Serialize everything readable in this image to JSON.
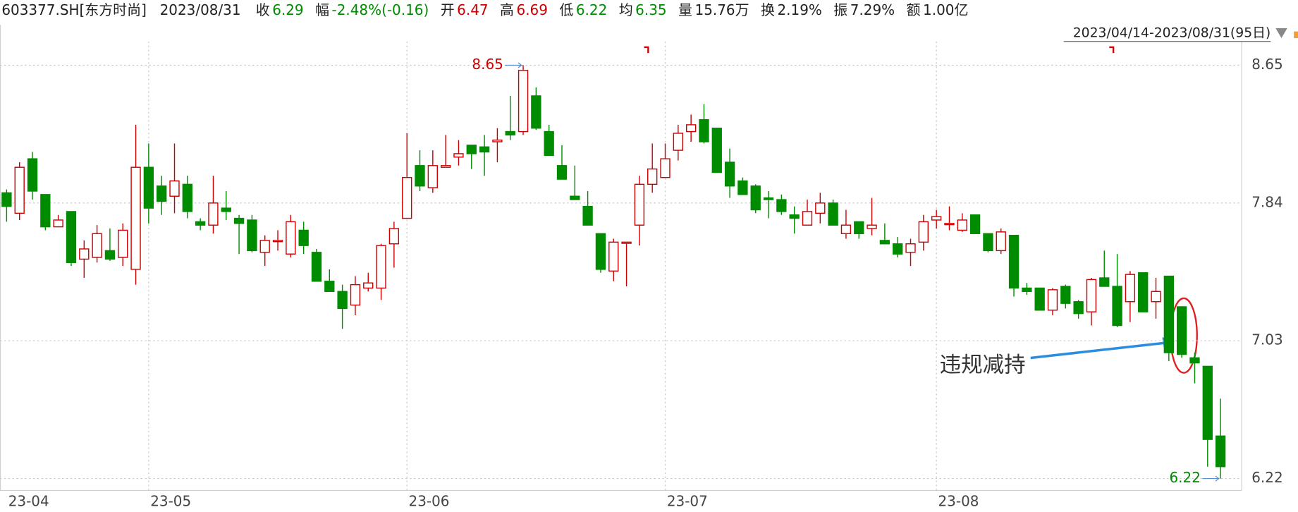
{
  "header": {
    "code": "603377.SH[东方时尚]",
    "date": "2023/08/31",
    "fields": [
      {
        "label": "收",
        "value": "6.29"
      },
      {
        "label": "幅",
        "value": "-2.48%(-0.16)"
      },
      {
        "label": "开",
        "value": "6.47"
      },
      {
        "label": "高",
        "value": "6.69"
      },
      {
        "label": "低",
        "value": "6.22"
      },
      {
        "label": "均",
        "value": "6.35"
      },
      {
        "label": "量",
        "value": "15.76万"
      },
      {
        "label": "换",
        "value": "2.19%"
      },
      {
        "label": "振",
        "value": "7.29%"
      },
      {
        "label": "额",
        "value": "1.00亿"
      }
    ],
    "range": "2023/04/14-2023/08/31(95日)"
  },
  "chart_data": {
    "type": "candlestick",
    "categories": [
      "23-04",
      null,
      null,
      null,
      null,
      null,
      null,
      null,
      null,
      null,
      null,
      "23-05",
      null,
      null,
      null,
      null,
      null,
      null,
      null,
      null,
      null,
      null,
      null,
      null,
      null,
      null,
      null,
      null,
      null,
      null,
      null,
      "23-06",
      null,
      null,
      null,
      null,
      null,
      null,
      null,
      null,
      null,
      null,
      null,
      null,
      null,
      null,
      null,
      null,
      null,
      null,
      null,
      "23-07",
      null,
      null,
      null,
      null,
      null,
      null,
      null,
      null,
      null,
      null,
      null,
      null,
      null,
      null,
      null,
      null,
      null,
      null,
      null,
      null,
      "23-08",
      null,
      null,
      null,
      null,
      null,
      null,
      null,
      null,
      null,
      null,
      null,
      null,
      null,
      null,
      null,
      null,
      null,
      null,
      null,
      null,
      null,
      null
    ],
    "open": [
      7.9,
      7.78,
      8.1,
      7.89,
      7.7,
      7.79,
      7.51,
      7.52,
      7.56,
      7.52,
      7.45,
      8.05,
      7.94,
      7.88,
      7.95,
      7.73,
      7.71,
      7.81,
      7.75,
      7.74,
      7.55,
      7.62,
      7.54,
      7.68,
      7.55,
      7.38,
      7.32,
      7.24,
      7.34,
      7.34,
      7.6,
      7.75,
      8.06,
      7.93,
      8.05,
      8.11,
      8.18,
      8.17,
      8.2,
      8.26,
      8.26,
      8.47,
      8.26,
      8.06,
      7.88,
      7.82,
      7.66,
      7.44,
      7.61,
      7.71,
      7.95,
      7.99,
      8.15,
      8.26,
      8.33,
      8.28,
      8.08,
      7.97,
      7.94,
      7.87,
      7.86,
      7.77,
      7.71,
      7.78,
      7.84,
      7.66,
      7.73,
      7.69,
      7.62,
      7.6,
      7.55,
      7.61,
      7.74,
      7.72,
      7.68,
      7.77,
      7.66,
      7.56,
      7.65,
      7.34,
      7.34,
      7.21,
      7.35,
      7.26,
      7.2,
      7.4,
      7.35,
      7.26,
      7.43,
      7.26,
      7.41,
      7.23,
      6.93,
      6.88,
      6.47
    ],
    "high": [
      7.92,
      8.08,
      8.14,
      7.89,
      7.77,
      7.79,
      7.62,
      7.71,
      7.69,
      7.72,
      8.3,
      8.19,
      8.0,
      8.19,
      8.0,
      7.75,
      8.0,
      7.91,
      7.77,
      7.77,
      7.65,
      7.68,
      7.77,
      7.73,
      7.57,
      7.45,
      7.36,
      7.41,
      7.43,
      7.6,
      7.73,
      8.25,
      8.15,
      8.15,
      8.24,
      8.21,
      8.18,
      8.24,
      8.28,
      8.47,
      8.65,
      8.52,
      8.3,
      8.18,
      8.06,
      7.91,
      7.66,
      7.63,
      7.61,
      8.0,
      8.19,
      8.19,
      8.3,
      8.36,
      8.42,
      8.28,
      8.16,
      7.99,
      7.95,
      7.91,
      7.89,
      7.82,
      7.86,
      7.9,
      7.86,
      7.8,
      7.73,
      7.87,
      7.72,
      7.64,
      7.63,
      7.77,
      7.8,
      7.82,
      7.78,
      7.77,
      7.66,
      7.69,
      7.65,
      7.37,
      7.34,
      7.34,
      7.36,
      7.27,
      7.4,
      7.56,
      7.54,
      7.44,
      7.43,
      7.4,
      7.41,
      7.23,
      6.96,
      6.88,
      6.69
    ],
    "low": [
      7.73,
      7.74,
      7.86,
      7.68,
      7.7,
      7.47,
      7.4,
      7.49,
      7.5,
      7.47,
      7.36,
      7.72,
      7.77,
      7.78,
      7.75,
      7.68,
      7.66,
      7.74,
      7.54,
      7.55,
      7.47,
      7.56,
      7.52,
      7.54,
      7.38,
      7.32,
      7.1,
      7.18,
      7.32,
      7.27,
      7.46,
      7.75,
      7.91,
      7.9,
      8.05,
      8.06,
      8.04,
      8.0,
      8.08,
      8.21,
      8.24,
      8.27,
      8.12,
      7.98,
      7.86,
      7.71,
      7.43,
      7.38,
      7.35,
      7.59,
      7.9,
      7.99,
      8.09,
      8.2,
      8.19,
      8.02,
      7.87,
      7.89,
      7.78,
      7.75,
      7.77,
      7.66,
      7.71,
      7.72,
      7.71,
      7.63,
      7.63,
      7.65,
      7.6,
      7.52,
      7.47,
      7.56,
      7.69,
      7.68,
      7.67,
      7.66,
      7.55,
      7.54,
      7.29,
      7.3,
      7.21,
      7.18,
      7.22,
      7.16,
      7.12,
      7.35,
      7.11,
      7.14,
      7.2,
      7.16,
      6.91,
      6.93,
      6.78,
      6.29,
      6.22
    ],
    "close": [
      7.82,
      8.05,
      7.91,
      7.7,
      7.74,
      7.49,
      7.57,
      7.66,
      7.51,
      7.68,
      8.05,
      7.81,
      7.85,
      7.97,
      7.79,
      7.71,
      7.84,
      7.79,
      7.72,
      7.56,
      7.62,
      7.62,
      7.73,
      7.59,
      7.38,
      7.32,
      7.22,
      7.36,
      7.37,
      7.59,
      7.69,
      7.99,
      7.94,
      8.06,
      8.06,
      8.13,
      8.13,
      8.14,
      8.21,
      8.24,
      8.62,
      8.28,
      8.12,
      7.98,
      7.86,
      7.71,
      7.45,
      7.61,
      7.61,
      7.95,
      8.04,
      8.1,
      8.25,
      8.3,
      8.2,
      8.02,
      7.94,
      7.89,
      7.8,
      7.86,
      7.79,
      7.75,
      7.79,
      7.84,
      7.71,
      7.71,
      7.66,
      7.71,
      7.6,
      7.54,
      7.6,
      7.73,
      7.76,
      7.72,
      7.74,
      7.66,
      7.56,
      7.67,
      7.34,
      7.32,
      7.21,
      7.33,
      7.25,
      7.19,
      7.39,
      7.35,
      7.12,
      7.42,
      7.2,
      7.32,
      6.96,
      6.95,
      6.9,
      6.45,
      6.29
    ],
    "up_color": "#cc0000",
    "down_color": "#008c00",
    "ylim": [
      6.15,
      8.79
    ],
    "yticks": [
      6.22,
      7.03,
      7.84,
      8.65
    ],
    "grid": true,
    "max_label": 8.65,
    "min_label": 6.22,
    "annotation": "违规减持"
  }
}
